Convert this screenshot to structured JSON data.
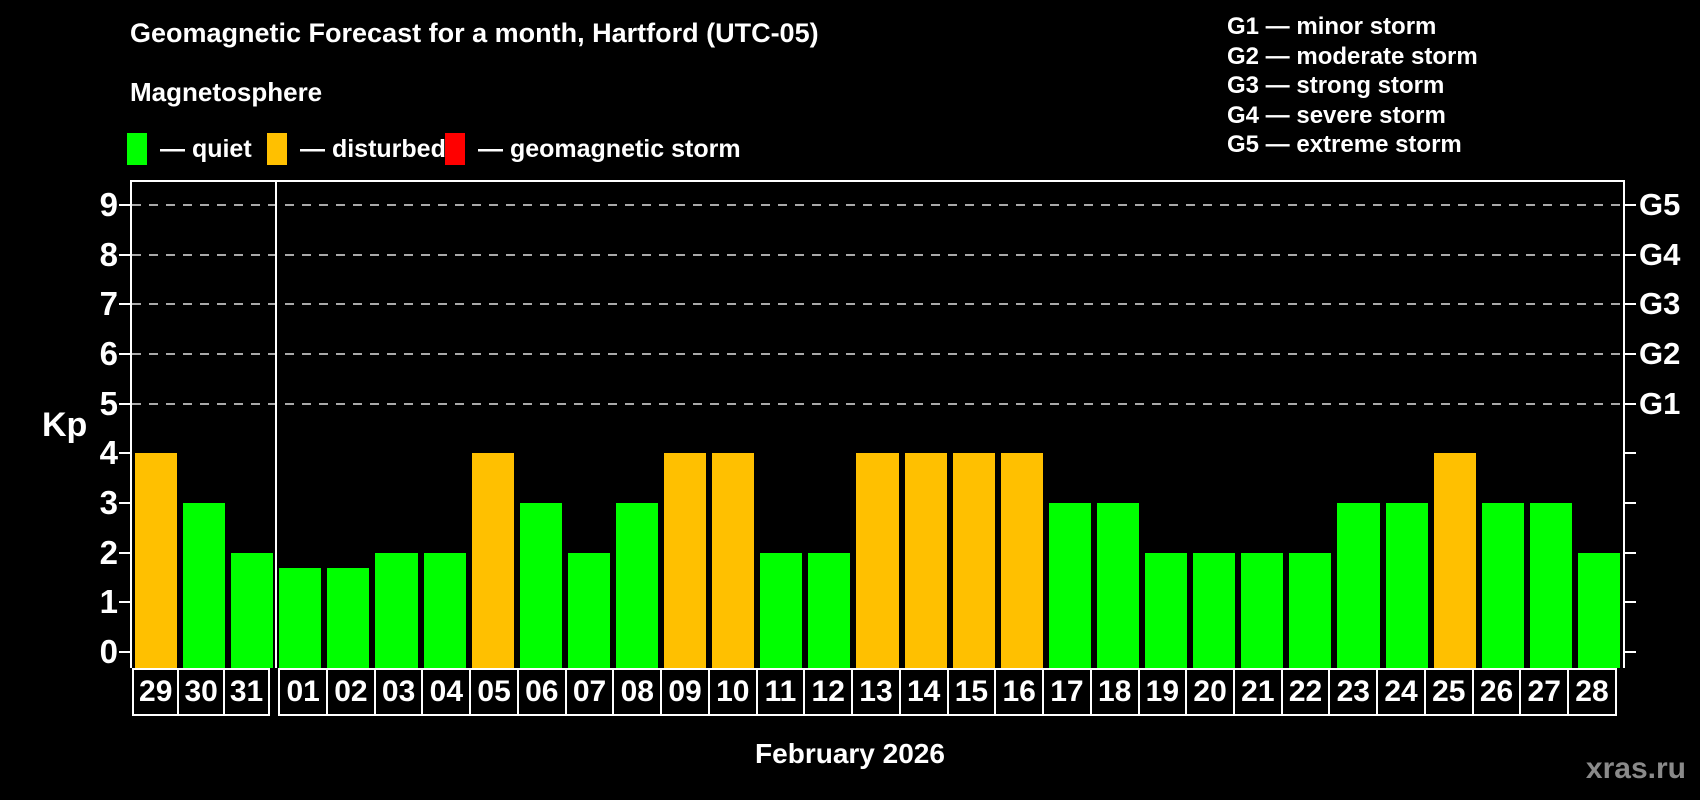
{
  "header": {
    "title": "Geomagnetic Forecast for a month, Hartford (UTC-05)",
    "subtitle": "Magnetosphere"
  },
  "legend": {
    "items": [
      {
        "key": "quiet",
        "label": "— quiet"
      },
      {
        "key": "disturbed",
        "label": "— disturbed"
      },
      {
        "key": "storm",
        "label": "— geomagnetic storm"
      }
    ]
  },
  "g_legend": {
    "items": [
      "G1 — minor storm",
      "G2 — moderate storm",
      "G3 — strong storm",
      "G4 — severe storm",
      "G5 — extreme storm"
    ]
  },
  "chart_data": {
    "type": "bar",
    "title": "Geomagnetic Forecast for a month, Hartford (UTC-05)",
    "ylabel": "Kp",
    "xlabel": "February 2026",
    "ylim": [
      0,
      9
    ],
    "yticks": [
      0,
      1,
      2,
      3,
      4,
      5,
      6,
      7,
      8,
      9
    ],
    "gridline_kp": [
      5,
      6,
      7,
      8,
      9
    ],
    "grid": "dashed",
    "right_axis_labels": [
      {
        "kp": 5,
        "text": "G1"
      },
      {
        "kp": 6,
        "text": "G2"
      },
      {
        "kp": 7,
        "text": "G3"
      },
      {
        "kp": 8,
        "text": "G4"
      },
      {
        "kp": 9,
        "text": "G5"
      }
    ],
    "categories": [
      "29",
      "30",
      "31",
      "01",
      "02",
      "03",
      "04",
      "05",
      "06",
      "07",
      "08",
      "09",
      "10",
      "11",
      "12",
      "13",
      "14",
      "15",
      "16",
      "17",
      "18",
      "19",
      "20",
      "21",
      "22",
      "23",
      "24",
      "25",
      "26",
      "27",
      "28"
    ],
    "values": [
      4,
      3,
      2,
      1.7,
      1.7,
      2,
      2,
      4,
      3,
      2,
      3,
      4,
      4,
      2,
      2,
      4,
      4,
      4,
      4,
      3,
      3,
      2,
      2,
      2,
      2,
      3,
      3,
      4,
      3,
      3,
      2
    ],
    "statuses": [
      "disturbed",
      "quiet",
      "quiet",
      "quiet",
      "quiet",
      "quiet",
      "quiet",
      "disturbed",
      "quiet",
      "quiet",
      "quiet",
      "disturbed",
      "disturbed",
      "quiet",
      "quiet",
      "disturbed",
      "disturbed",
      "disturbed",
      "disturbed",
      "quiet",
      "quiet",
      "quiet",
      "quiet",
      "quiet",
      "quiet",
      "quiet",
      "quiet",
      "disturbed",
      "quiet",
      "quiet",
      "quiet"
    ],
    "month_split_after": 3,
    "colors": {
      "quiet": "#00ff00",
      "disturbed": "#ffc000",
      "storm": "#ff0000",
      "grid": "#a9a9a9",
      "axis": "#ffffff",
      "watermark": "#8a8a8a"
    }
  },
  "watermark": "xras.ru"
}
